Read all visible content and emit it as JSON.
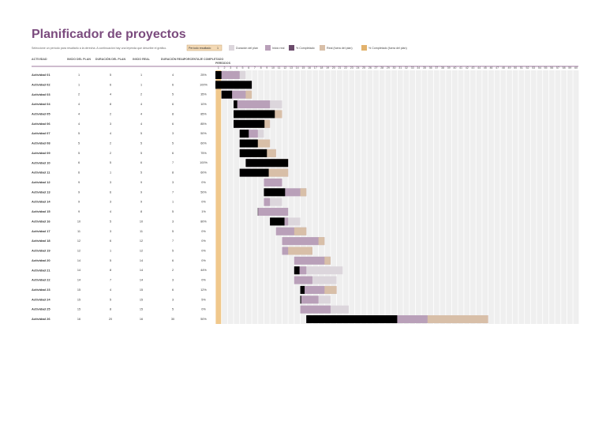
{
  "header": {
    "title": "Planificador de proyectos",
    "instruction": "Seleccione un período para resaltarlo a la derecha. A continuación hay una leyenda que describe el gráfico.",
    "highlight_label": "Período resaltado",
    "highlight_value": 1
  },
  "legend": [
    "Duración del plan",
    "Inicio real",
    "% Completado",
    "Real (fuera del plan)",
    "% Completado (fuera del plan)"
  ],
  "table": {
    "columns": [
      "ACTIVIDAD",
      "INICIO DEL PLAN",
      "DURACIÓN DEL PLAN",
      "INICIO REAL",
      "DURACIÓN REAL",
      "PORCENTAJE COMPLETADO",
      "PERÍODOS"
    ],
    "rows": [
      [
        "Actividad 01",
        1,
        5,
        1,
        4,
        "25%"
      ],
      [
        "Actividad 02",
        1,
        6,
        1,
        6,
        "100%"
      ],
      [
        "Actividad 03",
        2,
        4,
        2,
        5,
        "35%"
      ],
      [
        "Actividad 04",
        4,
        8,
        4,
        6,
        "10%"
      ],
      [
        "Actividad 05",
        4,
        2,
        4,
        8,
        "85%"
      ],
      [
        "Actividad 06",
        4,
        3,
        4,
        6,
        "85%"
      ],
      [
        "Actividad 07",
        5,
        4,
        5,
        3,
        "50%"
      ],
      [
        "Actividad 08",
        5,
        2,
        5,
        5,
        "60%"
      ],
      [
        "Actividad 09",
        5,
        2,
        5,
        6,
        "75%"
      ],
      [
        "Actividad 10",
        6,
        5,
        6,
        7,
        "100%"
      ],
      [
        "Actividad 11",
        6,
        1,
        5,
        8,
        "60%"
      ],
      [
        "Actividad 12",
        9,
        3,
        9,
        3,
        "0%"
      ],
      [
        "Actividad 13",
        9,
        6,
        9,
        7,
        "50%"
      ],
      [
        "Actividad 14",
        9,
        3,
        9,
        1,
        "0%"
      ],
      [
        "Actividad 15",
        9,
        4,
        8,
        5,
        "1%"
      ],
      [
        "Actividad 16",
        10,
        5,
        10,
        3,
        "80%"
      ],
      [
        "Actividad 17",
        11,
        3,
        11,
        5,
        "0%"
      ],
      [
        "Actividad 18",
        12,
        6,
        12,
        7,
        "0%"
      ],
      [
        "Actividad 19",
        12,
        1,
        12,
        5,
        "0%"
      ],
      [
        "Actividad 20",
        14,
        5,
        14,
        6,
        "0%"
      ],
      [
        "Actividad 21",
        14,
        8,
        14,
        2,
        "44%"
      ],
      [
        "Actividad 22",
        14,
        7,
        14,
        3,
        "0%"
      ],
      [
        "Actividad 23",
        15,
        4,
        15,
        6,
        "12%"
      ],
      [
        "Actividad 24",
        15,
        5,
        15,
        3,
        "5%"
      ],
      [
        "Actividad 25",
        15,
        8,
        15,
        5,
        "0%"
      ],
      [
        "Actividad 26",
        16,
        20,
        16,
        30,
        "50%"
      ]
    ]
  },
  "periods": [
    1,
    2,
    3,
    4,
    5,
    6,
    7,
    8,
    9,
    10,
    11,
    12,
    13,
    14,
    15,
    16,
    17,
    18,
    19,
    20,
    21,
    22,
    23,
    24,
    25,
    26,
    27,
    28,
    29,
    30,
    31,
    32,
    33,
    34,
    35,
    36,
    37,
    38,
    39,
    40,
    41,
    42,
    43,
    44,
    45,
    46,
    47,
    48,
    49,
    50,
    51,
    52,
    53,
    54,
    55,
    56,
    57,
    58,
    59,
    60
  ]
}
